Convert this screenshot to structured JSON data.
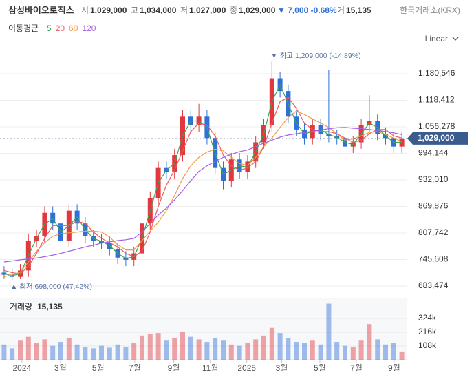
{
  "header": {
    "name": "삼성바이오로직스",
    "quote": [
      {
        "label": "시",
        "value": "1,029,000"
      },
      {
        "label": "고",
        "value": "1,034,000"
      },
      {
        "label": "저",
        "value": "1,027,000"
      },
      {
        "label": "종",
        "value": "1,029,000"
      }
    ],
    "change": "▼ 7,000 -0.68%",
    "volume_label": "거",
    "volume_value": "15,135",
    "exchange": "한국거래소(KRX)",
    "scale": "Linear"
  },
  "chart_data": {
    "type": "candlestick",
    "ma_label": "이동평균",
    "xlim": [
      -0.5,
      49.5
    ],
    "xticks": [
      {
        "value": 2.2,
        "label": "2024"
      },
      {
        "value": 6.95,
        "label": "3월"
      },
      {
        "value": 11.6,
        "label": "5월"
      },
      {
        "value": 16.1,
        "label": "7월"
      },
      {
        "value": 20.9,
        "label": "9월"
      },
      {
        "value": 25.4,
        "label": "11월"
      },
      {
        "value": 29.9,
        "label": "2025"
      },
      {
        "value": 34.2,
        "label": "3월"
      },
      {
        "value": 38.9,
        "label": "5월"
      },
      {
        "value": 43.4,
        "label": "7월"
      },
      {
        "value": 48.05,
        "label": "9월"
      }
    ],
    "ylim": [
      662492,
      1240264
    ],
    "yticks": [
      {
        "value": 683474,
        "label": "683,474"
      },
      {
        "value": 745608,
        "label": "745,608"
      },
      {
        "value": 807742,
        "label": "807,742"
      },
      {
        "value": 869876,
        "label": "869,876"
      },
      {
        "value": 932010,
        "label": "932,010"
      },
      {
        "value": 994144,
        "label": "994,144"
      },
      {
        "value": 1056278,
        "label": "1,056,278"
      },
      {
        "value": 1118412,
        "label": "1,118,412"
      },
      {
        "value": 1180546,
        "label": "1,180,546"
      }
    ],
    "up_color": "#e0383e",
    "down_color": "#2f6fd8",
    "grid": true,
    "open": [
      715000,
      710000,
      705000,
      720000,
      790000,
      800000,
      855000,
      830000,
      790000,
      860000,
      830000,
      800000,
      790000,
      785000,
      770000,
      750000,
      745000,
      760000,
      830000,
      890000,
      960000,
      950000,
      990000,
      1080000,
      1060000,
      1080000,
      1030000,
      960000,
      930000,
      980000,
      950000,
      975000,
      1020000,
      1060000,
      1170000,
      1140000,
      1080000,
      1050000,
      1030000,
      1060000,
      1040000,
      1035000,
      1030000,
      1010000,
      1020000,
      1060000,
      1070000,
      1040000,
      1030000,
      1010000
    ],
    "high": [
      730000,
      725000,
      735000,
      805000,
      815000,
      870000,
      870000,
      845000,
      875000,
      875000,
      845000,
      815000,
      805000,
      800000,
      785000,
      765000,
      775000,
      845000,
      905000,
      975000,
      975000,
      1005000,
      1095000,
      1095000,
      1110000,
      1095000,
      1045000,
      975000,
      995000,
      995000,
      990000,
      1035000,
      1075000,
      1209000,
      1185000,
      1155000,
      1095000,
      1065000,
      1075000,
      1075000,
      1190000,
      1050000,
      1045000,
      1035000,
      1075000,
      1130000,
      1085000,
      1055000,
      1045000,
      1044000
    ],
    "low": [
      700000,
      698000,
      700000,
      705000,
      775000,
      785000,
      815000,
      775000,
      775000,
      815000,
      785000,
      775000,
      770000,
      755000,
      735000,
      730000,
      730000,
      745000,
      815000,
      875000,
      935000,
      935000,
      975000,
      1045000,
      1045000,
      1015000,
      945000,
      910000,
      915000,
      935000,
      935000,
      960000,
      1005000,
      1045000,
      1125000,
      1065000,
      1035000,
      1015000,
      1015000,
      1025000,
      1020000,
      1015000,
      995000,
      995000,
      1005000,
      1045000,
      1025000,
      1015000,
      995000,
      995000
    ],
    "close": [
      710000,
      705000,
      720000,
      790000,
      800000,
      855000,
      830000,
      790000,
      860000,
      830000,
      800000,
      790000,
      785000,
      770000,
      750000,
      745000,
      760000,
      830000,
      890000,
      960000,
      950000,
      990000,
      1080000,
      1060000,
      1080000,
      1030000,
      960000,
      930000,
      980000,
      950000,
      975000,
      1020000,
      1060000,
      1170000,
      1140000,
      1080000,
      1050000,
      1030000,
      1060000,
      1040000,
      1035000,
      1030000,
      1010000,
      1020000,
      1060000,
      1070000,
      1040000,
      1030000,
      1010000,
      1029000
    ],
    "ma": [
      {
        "name": "5",
        "color": "#3aa655",
        "values": [
          712000,
          708000,
          712000,
          755000,
          795000,
          828000,
          842000,
          810000,
          825000,
          845000,
          815000,
          795000,
          788000,
          778000,
          760000,
          748000,
          752000,
          795000,
          860000,
          925000,
          955000,
          970000,
          1035000,
          1070000,
          1070000,
          1055000,
          995000,
          945000,
          955000,
          965000,
          962000,
          998000,
          1040000,
          1115000,
          1155000,
          1110000,
          1065000,
          1040000,
          1045000,
          1050000,
          1038000,
          1032000,
          1020000,
          1015000,
          1040000,
          1065000,
          1055000,
          1035000,
          1020000,
          1020000
        ]
      },
      {
        "name": "20",
        "color": "#ef5a5a",
        "values": [
          720000,
          715000,
          712000,
          730000,
          760000,
          795000,
          825000,
          825000,
          825000,
          835000,
          830000,
          810000,
          795000,
          785000,
          775000,
          760000,
          752000,
          765000,
          810000,
          870000,
          920000,
          955000,
          1000000,
          1045000,
          1065000,
          1060000,
          1035000,
          990000,
          965000,
          955000,
          960000,
          975000,
          1010000,
          1065000,
          1115000,
          1125000,
          1100000,
          1065000,
          1050000,
          1045000,
          1045000,
          1040000,
          1030000,
          1020000,
          1025000,
          1040000,
          1050000,
          1050000,
          1035000,
          1030000
        ]
      },
      {
        "name": "60",
        "color": "#f39a4a",
        "values": [
          705000,
          710000,
          716000,
          740000,
          765000,
          785000,
          800000,
          806000,
          808000,
          810000,
          812000,
          812000,
          810000,
          798000,
          780000,
          768000,
          768000,
          790000,
          812000,
          833000,
          860000,
          895000,
          935000,
          965000,
          985000,
          997000,
          1004000,
          1000000,
          985000,
          970000,
          966000,
          985000,
          1010000,
          1030000,
          1055000,
          1078000,
          1093000,
          1085000,
          1075000,
          1065000,
          1055000,
          1040000,
          1025000,
          1028000,
          1035000,
          1043000,
          1045000,
          1038000,
          1030000,
          1022000
        ]
      },
      {
        "name": "120",
        "color": "#a35ee8",
        "values": [
          740000,
          742000,
          745000,
          747000,
          749000,
          752000,
          756000,
          760000,
          765000,
          770000,
          775000,
          779000,
          784000,
          787000,
          790000,
          792000,
          795000,
          810000,
          830000,
          850000,
          866000,
          885000,
          907000,
          930000,
          952000,
          965000,
          975000,
          985000,
          992000,
          998000,
          1002000,
          1010000,
          1018000,
          1025000,
          1032000,
          1037000,
          1040000,
          1043000,
          1046000,
          1049000,
          1052000,
          1054000,
          1055000,
          1053000,
          1052000,
          1050000,
          1048000,
          1045000,
          1042000,
          1038000
        ]
      }
    ],
    "max_annotation": "▼ 최고 1,209,000 (-14.89%)",
    "min_annotation": "▲ 최저 698,000 (47.42%)",
    "last_label": "1,029,000",
    "volume": {
      "title": "거래량",
      "last": "15,135",
      "ylim": [
        0,
        470000
      ],
      "yticks": [
        {
          "value": 108000,
          "label": "108k"
        },
        {
          "value": 216000,
          "label": "216k"
        },
        {
          "value": 324000,
          "label": "324k"
        }
      ],
      "values": [
        120000,
        90000,
        150000,
        180000,
        130000,
        160000,
        110000,
        140000,
        170000,
        120000,
        100000,
        90000,
        110000,
        95000,
        120000,
        100000,
        130000,
        190000,
        200000,
        210000,
        150000,
        170000,
        220000,
        180000,
        160000,
        140000,
        170000,
        150000,
        120000,
        110000,
        130000,
        160000,
        190000,
        250000,
        210000,
        170000,
        140000,
        130000,
        150000,
        120000,
        440000,
        140000,
        110000,
        100000,
        150000,
        280000,
        160000,
        120000,
        130000,
        60000
      ]
    }
  }
}
